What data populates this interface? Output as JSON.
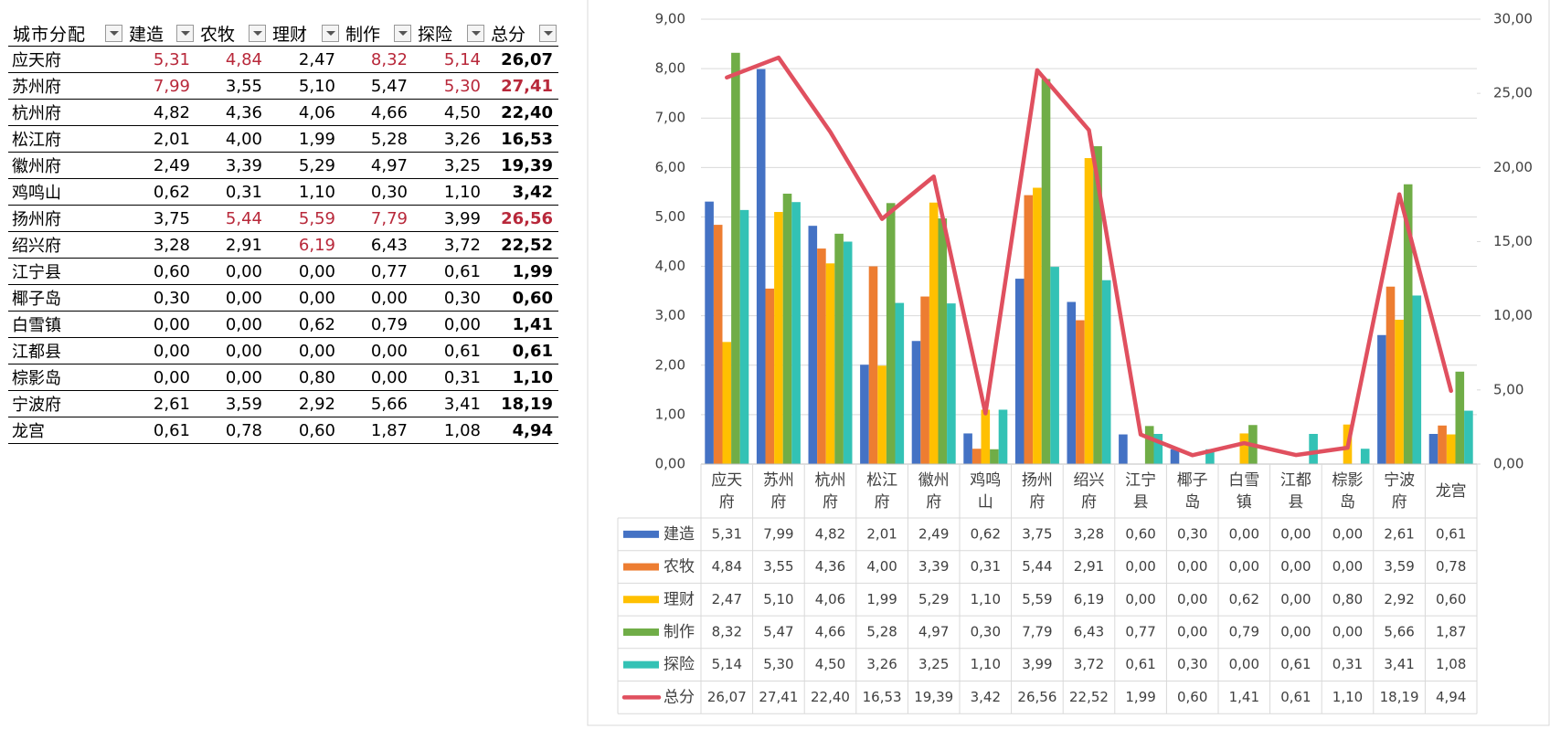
{
  "table": {
    "header": [
      "城市分配",
      "建造",
      "农牧",
      "理财",
      "制作",
      "探险",
      "总分"
    ],
    "rows": [
      [
        "应天府",
        {
          "text": "5,31",
          "color": "#b8283a"
        },
        {
          "text": "4,84",
          "color": "#b8283a"
        },
        "2,47",
        {
          "text": "8,32",
          "color": "#b8283a"
        },
        {
          "text": "5,14",
          "color": "#b8283a"
        },
        "26,07"
      ],
      [
        "苏州府",
        {
          "text": "7,99",
          "color": "#b8283a"
        },
        "3,55",
        "5,10",
        "5,47",
        {
          "text": "5,30",
          "color": "#b8283a"
        },
        {
          "text": "27,41",
          "color": "#b8283a"
        }
      ],
      [
        "杭州府",
        "4,82",
        "4,36",
        "4,06",
        "4,66",
        "4,50",
        "22,40"
      ],
      [
        "松江府",
        "2,01",
        "4,00",
        "1,99",
        "5,28",
        "3,26",
        "16,53"
      ],
      [
        "徽州府",
        "2,49",
        "3,39",
        "5,29",
        "4,97",
        "3,25",
        "19,39"
      ],
      [
        "鸡鸣山",
        "0,62",
        "0,31",
        "1,10",
        "0,30",
        "1,10",
        "3,42"
      ],
      [
        "扬州府",
        "3,75",
        {
          "text": "5,44",
          "color": "#b8283a"
        },
        {
          "text": "5,59",
          "color": "#b8283a"
        },
        {
          "text": "7,79",
          "color": "#b8283a"
        },
        "3,99",
        {
          "text": "26,56",
          "color": "#b8283a"
        }
      ],
      [
        "绍兴府",
        "3,28",
        "2,91",
        {
          "text": "6,19",
          "color": "#b8283a"
        },
        "6,43",
        "3,72",
        "22,52"
      ],
      [
        "江宁县",
        "0,60",
        "0,00",
        "0,00",
        "0,77",
        "0,61",
        "1,99"
      ],
      [
        "椰子岛",
        "0,30",
        "0,00",
        "0,00",
        "0,00",
        "0,30",
        "0,60"
      ],
      [
        "白雪镇",
        "0,00",
        "0,00",
        "0,62",
        "0,79",
        "0,00",
        "1,41"
      ],
      [
        "江都县",
        "0,00",
        "0,00",
        "0,00",
        "0,00",
        "0,61",
        "0,61"
      ],
      [
        "棕影岛",
        "0,00",
        "0,00",
        "0,80",
        "0,00",
        "0,31",
        "1,10"
      ],
      [
        "宁波府",
        "2,61",
        "3,59",
        "2,92",
        "5,66",
        "3,41",
        "18,19"
      ],
      [
        "龙宫",
        "0,61",
        "0,78",
        "0,60",
        "1,87",
        "1,08",
        "4,94"
      ]
    ]
  },
  "chart_data": {
    "type": "bar",
    "categories": [
      "应天府",
      "苏州府",
      "杭州府",
      "松江府",
      "徽州府",
      "鸡鸣山",
      "扬州府",
      "绍兴府",
      "江宁县",
      "椰子岛",
      "白雪镇",
      "江都县",
      "棕影岛",
      "宁波府",
      "龙宫"
    ],
    "series": [
      {
        "name": "建造",
        "color": "#4472c4",
        "values": [
          5.31,
          7.99,
          4.82,
          2.01,
          2.49,
          0.62,
          3.75,
          3.28,
          0.6,
          0.3,
          0.0,
          0.0,
          0.0,
          2.61,
          0.61
        ],
        "value_labels": [
          "5,31",
          "7,99",
          "4,82",
          "2,01",
          "2,49",
          "0,62",
          "3,75",
          "3,28",
          "0,60",
          "0,30",
          "0,00",
          "0,00",
          "0,00",
          "2,61",
          "0,61"
        ]
      },
      {
        "name": "农牧",
        "color": "#ed7d31",
        "values": [
          4.84,
          3.55,
          4.36,
          4.0,
          3.39,
          0.31,
          5.44,
          2.91,
          0.0,
          0.0,
          0.0,
          0.0,
          0.0,
          3.59,
          0.78
        ],
        "value_labels": [
          "4,84",
          "3,55",
          "4,36",
          "4,00",
          "3,39",
          "0,31",
          "5,44",
          "2,91",
          "0,00",
          "0,00",
          "0,00",
          "0,00",
          "0,00",
          "3,59",
          "0,78"
        ]
      },
      {
        "name": "理财",
        "color": "#ffc000",
        "values": [
          2.47,
          5.1,
          4.06,
          1.99,
          5.29,
          1.1,
          5.59,
          6.19,
          0.0,
          0.0,
          0.62,
          0.0,
          0.8,
          2.92,
          0.6
        ],
        "value_labels": [
          "2,47",
          "5,10",
          "4,06",
          "1,99",
          "5,29",
          "1,10",
          "5,59",
          "6,19",
          "0,00",
          "0,00",
          "0,62",
          "0,00",
          "0,80",
          "2,92",
          "0,60"
        ]
      },
      {
        "name": "制作",
        "color": "#70ad47",
        "values": [
          8.32,
          5.47,
          4.66,
          5.28,
          4.97,
          0.3,
          7.79,
          6.43,
          0.77,
          0.0,
          0.79,
          0.0,
          0.0,
          5.66,
          1.87
        ],
        "value_labels": [
          "8,32",
          "5,47",
          "4,66",
          "5,28",
          "4,97",
          "0,30",
          "7,79",
          "6,43",
          "0,77",
          "0,00",
          "0,79",
          "0,00",
          "0,00",
          "5,66",
          "1,87"
        ]
      },
      {
        "name": "探险",
        "color": "#33c2b5",
        "values": [
          5.14,
          5.3,
          4.5,
          3.26,
          3.25,
          1.1,
          3.99,
          3.72,
          0.61,
          0.3,
          0.0,
          0.61,
          0.31,
          3.41,
          1.08
        ],
        "value_labels": [
          "5,14",
          "5,30",
          "4,50",
          "3,26",
          "3,25",
          "1,10",
          "3,99",
          "3,72",
          "0,61",
          "0,30",
          "0,00",
          "0,61",
          "0,31",
          "3,41",
          "1,08"
        ]
      },
      {
        "name": "总分",
        "color": "#e0505f",
        "type": "line",
        "axis": "y2",
        "values": [
          26.07,
          27.41,
          22.4,
          16.53,
          19.39,
          3.42,
          26.56,
          22.52,
          1.99,
          0.6,
          1.41,
          0.61,
          1.1,
          18.19,
          4.94
        ],
        "value_labels": [
          "26,07",
          "27,41",
          "22,40",
          "16,53",
          "19,39",
          "3,42",
          "26,56",
          "22,52",
          "1,99",
          "0,60",
          "1,41",
          "0,61",
          "1,10",
          "18,19",
          "4,94"
        ]
      }
    ],
    "ylim": [
      0,
      9
    ],
    "yticks": [
      {
        "value": 0,
        "label": "0,00"
      },
      {
        "value": 1,
        "label": "1,00"
      },
      {
        "value": 2,
        "label": "2,00"
      },
      {
        "value": 3,
        "label": "3,00"
      },
      {
        "value": 4,
        "label": "4,00"
      },
      {
        "value": 5,
        "label": "5,00"
      },
      {
        "value": 6,
        "label": "6,00"
      },
      {
        "value": 7,
        "label": "7,00"
      },
      {
        "value": 8,
        "label": "8,00"
      },
      {
        "value": 9,
        "label": "9,00"
      }
    ],
    "y2lim": [
      0,
      30
    ],
    "y2ticks": [
      {
        "value": 0,
        "label": "0,00"
      },
      {
        "value": 5,
        "label": "5,00"
      },
      {
        "value": 10,
        "label": "10,00"
      },
      {
        "value": 15,
        "label": "15,00"
      },
      {
        "value": 20,
        "label": "20,00"
      },
      {
        "value": 25,
        "label": "25,00"
      },
      {
        "value": 30,
        "label": "30,00"
      }
    ],
    "grid": true,
    "data_table": true
  }
}
